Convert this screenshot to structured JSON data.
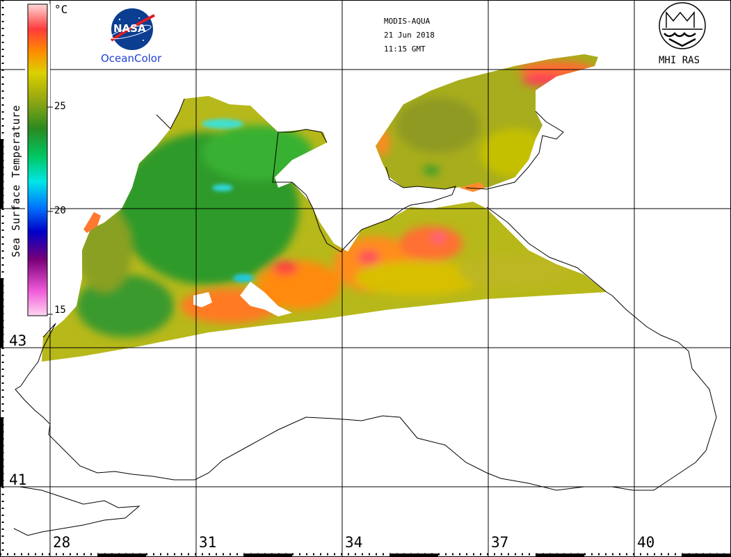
{
  "header": {
    "sensor": "MODIS-AQUA",
    "date": "21 Jun 2018",
    "time": "11:15 GMT"
  },
  "logos": {
    "nasa_text": "NASA",
    "oceancolor_text": "OceanColor",
    "mhi_text": "MHI RAS"
  },
  "colorbar": {
    "title": "Sea Surface Temperature",
    "unit": "°C",
    "ticks": [
      "25",
      "20",
      "15"
    ],
    "range": [
      15,
      30
    ],
    "colors": [
      "#ffd6f0",
      "#f05ad8",
      "#7a007a",
      "#0000c8",
      "#0078ff",
      "#00e6e6",
      "#00c864",
      "#2a8a20",
      "#9aaa10",
      "#dcd000",
      "#ff8a00",
      "#ff3b3b",
      "#ffd8d8"
    ]
  },
  "grid": {
    "lat_labels": [
      "43",
      "41"
    ],
    "lon_labels": [
      "28",
      "31",
      "34",
      "37",
      "40"
    ]
  },
  "map": {
    "region": "Black Sea",
    "variable": "sea surface temperature",
    "land_color": "#ffffff",
    "coastline_color": "#000000",
    "no_data_color": "#ffffff"
  }
}
